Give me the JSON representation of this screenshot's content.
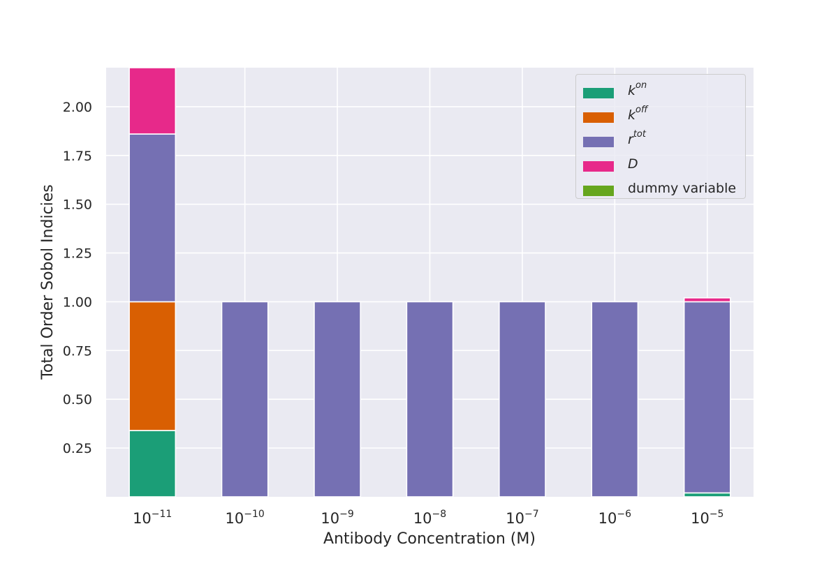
{
  "chart_data": {
    "type": "bar",
    "stacked": true,
    "title": "",
    "xlabel": "Antibody Concentration (M)",
    "ylabel": "Total Order Sobol Indicies",
    "categories": [
      {
        "base": "10",
        "exp": "−11"
      },
      {
        "base": "10",
        "exp": "−10"
      },
      {
        "base": "10",
        "exp": "−9"
      },
      {
        "base": "10",
        "exp": "−8"
      },
      {
        "base": "10",
        "exp": "−7"
      },
      {
        "base": "10",
        "exp": "−6"
      },
      {
        "base": "10",
        "exp": "−5"
      }
    ],
    "ylim": [
      0,
      2.2
    ],
    "yticks": [
      0.25,
      0.5,
      0.75,
      1.0,
      1.25,
      1.5,
      1.75,
      2.0
    ],
    "ytick_labels": [
      "0.25",
      "0.50",
      "0.75",
      "1.00",
      "1.25",
      "1.50",
      "1.75",
      "2.00"
    ],
    "grid": true,
    "legend_position": "top-right",
    "series": [
      {
        "name": "k^on",
        "label_base": "k",
        "label_sup": "on",
        "color": "#1b9e77",
        "values": [
          0.34,
          0.0,
          0.0,
          0.0,
          0.0,
          0.0,
          0.02
        ]
      },
      {
        "name": "k^off",
        "label_base": "k",
        "label_sup": "off",
        "color": "#d95f02",
        "values": [
          0.66,
          0.0,
          0.0,
          0.0,
          0.0,
          0.0,
          0.0
        ]
      },
      {
        "name": "r^tot",
        "label_base": "r",
        "label_sup": "tot",
        "color": "#7570b3",
        "values": [
          0.86,
          1.0,
          1.0,
          1.0,
          1.0,
          1.0,
          0.98
        ]
      },
      {
        "name": "D",
        "label_base": "D",
        "label_sup": "",
        "color": "#e7298a",
        "values": [
          0.34,
          0.0,
          0.0,
          0.0,
          0.0,
          0.0,
          0.02
        ]
      },
      {
        "name": "dummy variable",
        "label_base": "dummy variable",
        "label_sup": "",
        "plain": true,
        "color": "#66a61e",
        "values": [
          0.0,
          0.0,
          0.0,
          0.0,
          0.0,
          0.0,
          0.0
        ]
      }
    ]
  }
}
